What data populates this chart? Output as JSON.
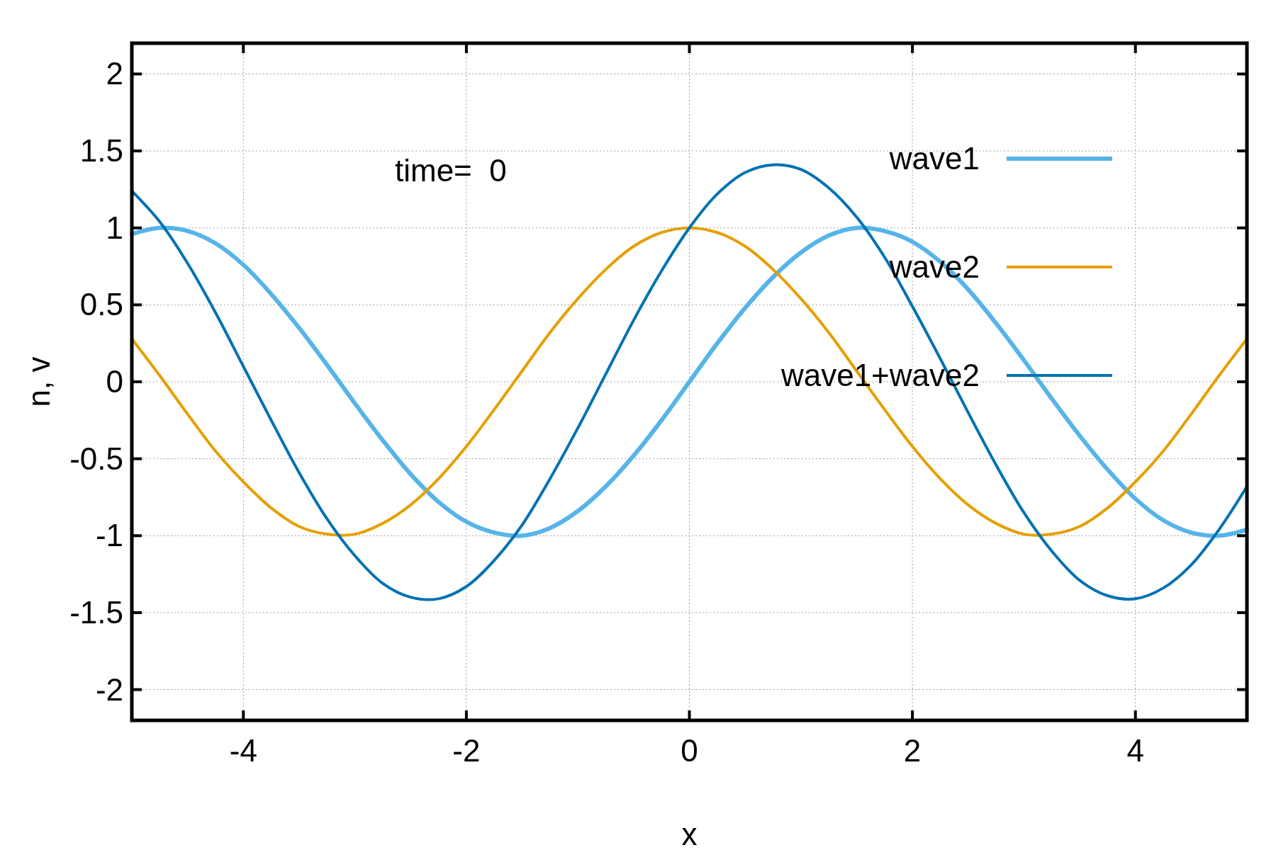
{
  "chart_data": {
    "type": "line",
    "xlabel": "x",
    "ylabel": "n, v",
    "annotations": [
      "time=  0"
    ],
    "x": [
      -5,
      -4.75,
      -4.5,
      -4.25,
      -4,
      -3.75,
      -3.5,
      -3.25,
      -3,
      -2.75,
      -2.5,
      -2.25,
      -2,
      -1.75,
      -1.5,
      -1.25,
      -1,
      -0.75,
      -0.5,
      -0.25,
      0,
      0.25,
      0.5,
      0.75,
      1,
      1.25,
      1.5,
      1.75,
      2,
      2.25,
      2.5,
      2.75,
      3,
      3.25,
      3.5,
      3.75,
      4,
      4.25,
      4.5,
      4.75,
      5
    ],
    "series": [
      {
        "name": "wave1",
        "color": "#56b4e9",
        "values": [
          0.96,
          1.0,
          0.98,
          0.9,
          0.76,
          0.57,
          0.35,
          0.11,
          -0.14,
          -0.38,
          -0.6,
          -0.78,
          -0.91,
          -0.98,
          -1.0,
          -0.95,
          -0.84,
          -0.68,
          -0.48,
          -0.25,
          0,
          0.25,
          0.48,
          0.68,
          0.84,
          0.95,
          1.0,
          0.98,
          0.91,
          0.78,
          0.6,
          0.38,
          0.14,
          -0.11,
          -0.35,
          -0.57,
          -0.76,
          -0.9,
          -0.98,
          -1.0,
          -0.96
        ]
      },
      {
        "name": "wave2",
        "color": "#e69f00",
        "values": [
          0.28,
          0.04,
          -0.21,
          -0.45,
          -0.65,
          -0.82,
          -0.94,
          -0.99,
          -0.99,
          -0.92,
          -0.8,
          -0.63,
          -0.42,
          -0.18,
          0.07,
          0.32,
          0.54,
          0.73,
          0.88,
          0.97,
          1,
          0.97,
          0.88,
          0.73,
          0.54,
          0.32,
          0.07,
          -0.18,
          -0.42,
          -0.63,
          -0.8,
          -0.92,
          -0.99,
          -0.99,
          -0.94,
          -0.82,
          -0.65,
          -0.45,
          -0.21,
          0.04,
          0.28
        ]
      },
      {
        "name": "wave1+wave2",
        "color": "#0072b2",
        "values": [
          1.24,
          1.04,
          0.77,
          0.45,
          0.1,
          -0.25,
          -0.59,
          -0.89,
          -1.13,
          -1.31,
          -1.4,
          -1.41,
          -1.33,
          -1.16,
          -0.93,
          -0.63,
          -0.3,
          0.05,
          0.4,
          0.72,
          1,
          1.22,
          1.36,
          1.41,
          1.38,
          1.26,
          1.07,
          0.81,
          0.49,
          0.15,
          -0.2,
          -0.54,
          -0.85,
          -1.1,
          -1.29,
          -1.39,
          -1.41,
          -1.34,
          -1.19,
          -0.96,
          -0.68
        ]
      }
    ],
    "xlim": [
      -5,
      5
    ],
    "xticks": [
      -4,
      -2,
      0,
      2,
      4
    ],
    "ylim": [
      -2.2,
      2.2
    ],
    "yticks": [
      -2,
      -1.5,
      -1,
      -0.5,
      0,
      0.5,
      1,
      1.5,
      2
    ],
    "grid": true,
    "legend": "top right",
    "line_style": "solid"
  }
}
